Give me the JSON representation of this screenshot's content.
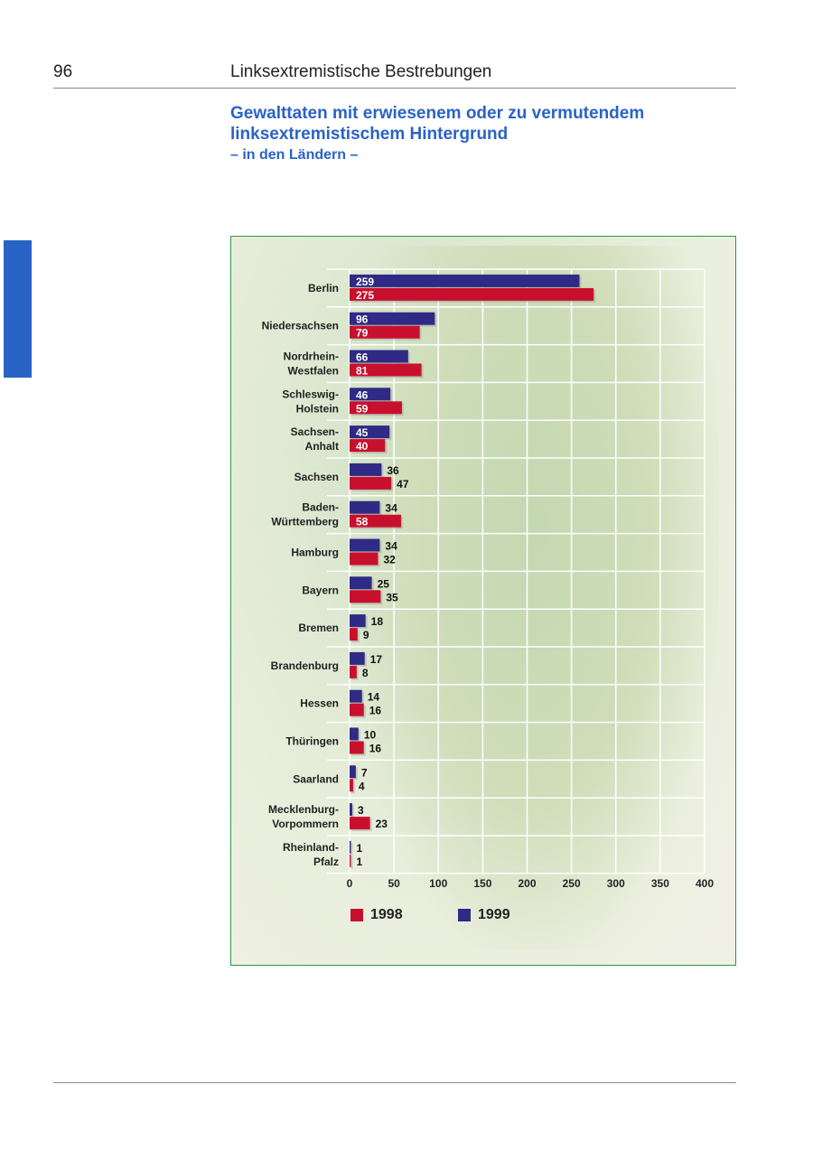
{
  "header": {
    "page_number": "96",
    "section_title": "Linksextremistische Bestrebungen"
  },
  "title": {
    "line1": "Gewalttaten mit erwiesenem oder zu vermutendem",
    "line2": "linksextremistischem Hintergrund",
    "subtitle": "– in den Ländern –"
  },
  "colors": {
    "y1998": "#c8102e",
    "y1999": "#2e2a85",
    "frame": "#2b9a3e",
    "title": "#2a63c6"
  },
  "chart_data": {
    "type": "bar",
    "orientation": "horizontal",
    "categories": [
      [
        "Berlin"
      ],
      [
        "Niedersachsen"
      ],
      [
        "Nordrhein-",
        "Westfalen"
      ],
      [
        "Schleswig-",
        "Holstein"
      ],
      [
        "Sachsen-",
        "Anhalt"
      ],
      [
        "Sachsen"
      ],
      [
        "Baden-",
        "Württemberg"
      ],
      [
        "Hamburg"
      ],
      [
        "Bayern"
      ],
      [
        "Bremen"
      ],
      [
        "Brandenburg"
      ],
      [
        "Hessen"
      ],
      [
        "Thüringen"
      ],
      [
        "Saarland"
      ],
      [
        "Mecklenburg-",
        "Vorpommern"
      ],
      [
        "Rheinland-",
        "Pfalz"
      ]
    ],
    "series": [
      {
        "name": "1999",
        "values": [
          259,
          96,
          66,
          46,
          45,
          36,
          34,
          34,
          25,
          18,
          17,
          14,
          10,
          7,
          3,
          1
        ]
      },
      {
        "name": "1998",
        "values": [
          275,
          79,
          81,
          59,
          40,
          47,
          58,
          32,
          35,
          9,
          8,
          16,
          16,
          4,
          23,
          1
        ]
      }
    ],
    "xlim": [
      0,
      400
    ],
    "xticks": [
      "0",
      "50",
      "100",
      "150",
      "200",
      "250",
      "300",
      "350",
      "400"
    ],
    "legend": [
      "1998",
      "1999"
    ],
    "legend_placement": "bottom",
    "grid": true
  }
}
